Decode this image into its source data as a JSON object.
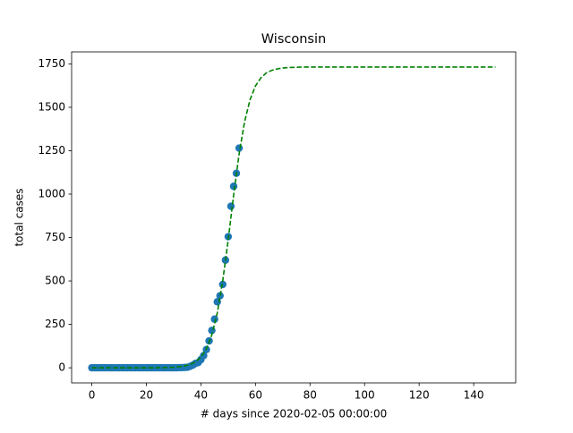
{
  "chart_data": {
    "type": "scatter",
    "title": "Wisconsin",
    "x_label": "# days since 2020-02-05 00:00:00",
    "y_label": "total cases",
    "xlim": [
      -7.4,
      155.4
    ],
    "ylim": [
      -87,
      1819
    ],
    "xticks": [
      0,
      20,
      40,
      60,
      80,
      100,
      120,
      140
    ],
    "yticks": [
      0,
      250,
      500,
      750,
      1000,
      1250,
      1500,
      1750
    ],
    "series": [
      {
        "type": "line",
        "color": "#008000",
        "dashed": true,
        "x": [
          0,
          2,
          4,
          6,
          8,
          10,
          12,
          14,
          16,
          18,
          20,
          22,
          24,
          26,
          28,
          30,
          32,
          34,
          36,
          38,
          40,
          42,
          44,
          46,
          48,
          50,
          52,
          54,
          56,
          58,
          60,
          62,
          64,
          66,
          68,
          70,
          72,
          74,
          76,
          78,
          80,
          84,
          88,
          92,
          96,
          100,
          104,
          108,
          112,
          116,
          120,
          124,
          128,
          132,
          136,
          140,
          144,
          148
        ],
        "values": [
          0,
          0,
          0,
          0,
          0,
          0,
          0,
          0,
          0,
          0.1,
          0.2,
          0.3,
          0.5,
          1,
          1.7,
          3.2,
          5.8,
          10.5,
          19,
          34.4,
          61.6,
          109,
          189,
          316,
          501,
          737,
          995,
          1231,
          1416,
          1543,
          1623,
          1670,
          1698,
          1713,
          1721,
          1726,
          1729,
          1730,
          1731,
          1732,
          1732,
          1732,
          1732,
          1732,
          1732,
          1732,
          1732,
          1732,
          1732,
          1732,
          1732,
          1732,
          1732,
          1732,
          1732,
          1732,
          1732,
          1732
        ]
      },
      {
        "type": "scatter",
        "color": "#1f77b4",
        "x": [
          0,
          1,
          2,
          3,
          4,
          5,
          6,
          7,
          8,
          9,
          10,
          11,
          12,
          13,
          14,
          15,
          16,
          17,
          18,
          19,
          20,
          21,
          22,
          23,
          24,
          25,
          26,
          27,
          28,
          29,
          30,
          31,
          32,
          33,
          34,
          35,
          36,
          37,
          38,
          39,
          40,
          41,
          42,
          43,
          44,
          45,
          46,
          47,
          48,
          49,
          50,
          51,
          52,
          53,
          54
        ],
        "values": [
          0,
          0,
          0,
          0,
          0,
          0,
          0,
          0,
          0,
          0,
          0,
          0,
          0,
          0,
          0,
          0,
          0,
          0,
          0,
          0,
          0,
          0,
          0,
          0,
          0,
          0,
          0,
          0,
          0,
          0,
          0,
          0,
          1,
          1,
          2,
          3,
          8,
          15,
          25,
          30,
          47,
          70,
          105,
          155,
          215,
          280,
          380,
          415,
          480,
          620,
          755,
          930,
          1045,
          1120,
          1265
        ]
      }
    ]
  }
}
